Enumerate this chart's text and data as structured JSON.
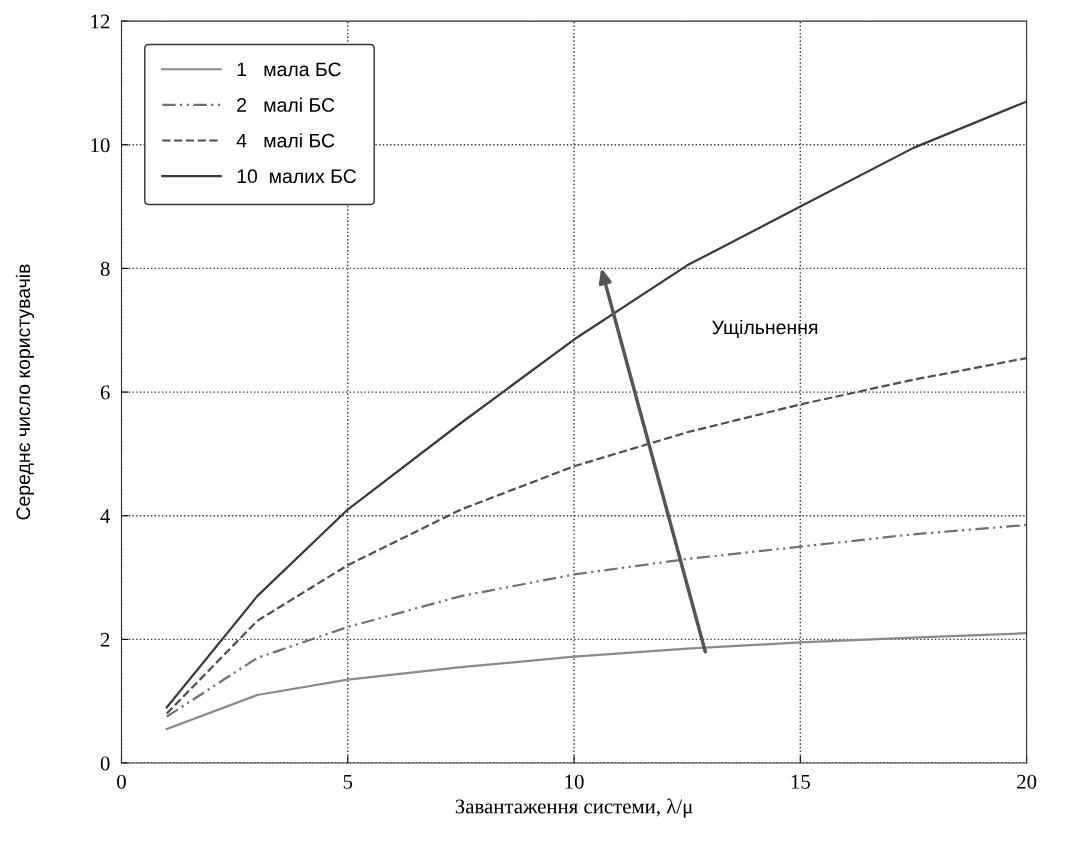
{
  "chart_data": {
    "type": "line",
    "xlabel": "Завантаження системи, λ/μ",
    "ylabel": "Середнє число користувачів",
    "xlim": [
      0,
      20
    ],
    "ylim": [
      0,
      12
    ],
    "xticks": [
      0,
      5,
      10,
      15,
      20
    ],
    "yticks": [
      0,
      2,
      4,
      6,
      8,
      10,
      12
    ],
    "grid": true,
    "legend": "top left",
    "marker": "none",
    "series": [
      {
        "name": "1   мала БС",
        "color": "#8a8a8a",
        "line_style": "solid",
        "x": [
          1,
          3,
          5,
          7.5,
          10,
          12.5,
          15,
          17.5,
          20
        ],
        "values": [
          0.55,
          1.1,
          1.35,
          1.55,
          1.72,
          1.85,
          1.95,
          2.03,
          2.1
        ]
      },
      {
        "name": "2   малі БС",
        "color": "#707070",
        "line_style": "dashdot",
        "x": [
          1,
          3,
          5,
          7.5,
          10,
          12.5,
          15,
          17.5,
          20
        ],
        "values": [
          0.75,
          1.7,
          2.2,
          2.7,
          3.05,
          3.3,
          3.5,
          3.7,
          3.85
        ]
      },
      {
        "name": "4   малі БС",
        "color": "#505050",
        "line_style": "dashed",
        "x": [
          1,
          3,
          5,
          7.5,
          10,
          12.5,
          15,
          17.5,
          20
        ],
        "values": [
          0.8,
          2.3,
          3.2,
          4.1,
          4.8,
          5.35,
          5.8,
          6.2,
          6.55
        ]
      },
      {
        "name": "10  малих БС",
        "color": "#3a3a3a",
        "line_style": "solid",
        "x": [
          1,
          3,
          5,
          7.5,
          10,
          12.5,
          15,
          17.5,
          20
        ],
        "values": [
          0.9,
          2.7,
          4.1,
          5.5,
          6.85,
          8.05,
          9.0,
          9.95,
          10.7
        ]
      }
    ],
    "annotations": [
      "Ущільнення"
    ]
  }
}
